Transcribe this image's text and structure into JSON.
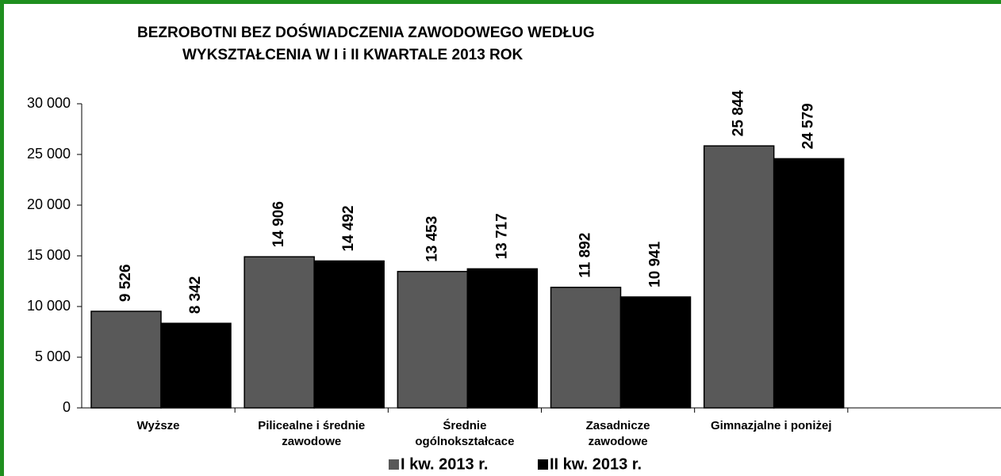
{
  "chart_data": {
    "type": "bar",
    "title": [
      "BEZROBOTNI BEZ DOŚWIADCZENIA ZAWODOWEGO WEDŁUG",
      "WYKSZTAŁCENIA W  I i II KWARTALE 2013 ROK"
    ],
    "categories": [
      [
        "Wyższe"
      ],
      [
        "Pilicealne i średnie",
        "zawodowe"
      ],
      [
        "Średnie",
        "ogólnokształcace"
      ],
      [
        "Zasadnicze",
        "zawodowe"
      ],
      [
        "Gimnazjalne i poniżej"
      ],
      null
    ],
    "series": [
      {
        "name": "I kw. 2013 r.",
        "color": "#595959",
        "values": [
          9526,
          14906,
          13453,
          11892,
          25844,
          null
        ],
        "value_labels": [
          "9 526",
          "14 906",
          "13 453",
          "11 892",
          "25 844",
          null
        ]
      },
      {
        "name": "II kw. 2013 r.",
        "color": "#000000",
        "values": [
          8342,
          14492,
          13717,
          10941,
          24579,
          null
        ],
        "value_labels": [
          "8 342",
          "14 492",
          "13 717",
          "10 941",
          "24 579",
          null
        ]
      }
    ],
    "ylim": [
      0,
      30000
    ],
    "yticks": [
      {
        "value": 0,
        "label": "0"
      },
      {
        "value": 5000,
        "label": "5 000"
      },
      {
        "value": 10000,
        "label": "10 000"
      },
      {
        "value": 15000,
        "label": "15 000"
      },
      {
        "value": 20000,
        "label": "20 000"
      },
      {
        "value": 25000,
        "label": "25 000"
      },
      {
        "value": 30000,
        "label": "30 000"
      }
    ],
    "grid": false,
    "legend": "bottom"
  }
}
